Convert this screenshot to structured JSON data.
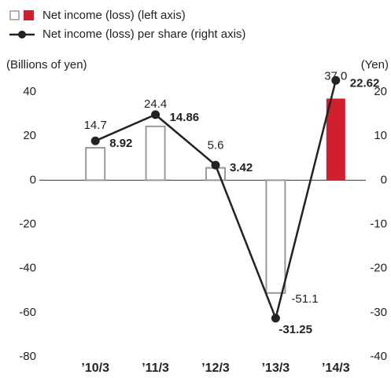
{
  "chart_data": {
    "type": "bar_line",
    "categories": [
      "’10/3",
      "’11/3",
      "’12/3",
      "’13/3",
      "’14/3"
    ],
    "series": [
      {
        "name": "Net income (loss) (left axis)",
        "type": "bar",
        "color": "#d0202e",
        "outline_color": "#999999",
        "filled": [
          false,
          false,
          false,
          false,
          true
        ],
        "values": [
          14.7,
          24.4,
          5.6,
          -51.1,
          37
        ],
        "value_labels": [
          "14.7",
          "24.4",
          "5.6",
          "-51.1",
          "37.0"
        ]
      },
      {
        "name": "Net income (loss) per share (right axis)",
        "type": "line",
        "axis": "y2",
        "color": "#222222",
        "values": [
          8.92,
          14.86,
          3.42,
          -31.25,
          22.62
        ]
      }
    ],
    "ylabel": "(Billions of yen)",
    "y2label": "(Yen)",
    "ylim": [
      -80,
      40
    ],
    "yticks": [
      40,
      20,
      0,
      -20,
      -40,
      -60,
      -80
    ],
    "y2lim": [
      -40,
      20
    ],
    "y2ticks": [
      20,
      10,
      0,
      -10,
      -20,
      -30,
      -40
    ],
    "legend": "top-left"
  }
}
